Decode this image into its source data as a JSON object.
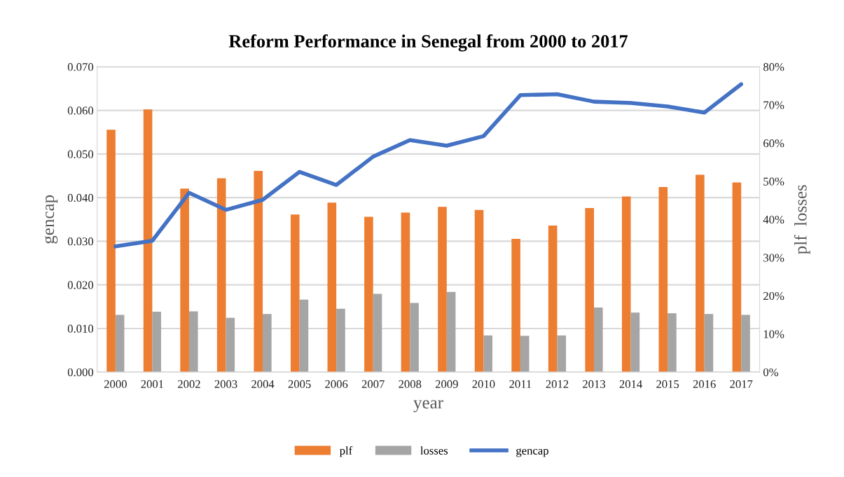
{
  "chart_data": {
    "type": "bar",
    "title": "Reform Performance in Senegal from 2000 to 2017",
    "xlabel": "year",
    "ylabel": "gencap",
    "y2label": "plf  losses",
    "categories": [
      "2000",
      "2001",
      "2002",
      "2003",
      "2004",
      "2005",
      "2006",
      "2007",
      "2008",
      "2009",
      "2010",
      "2011",
      "2012",
      "2013",
      "2014",
      "2015",
      "2016",
      "2017"
    ],
    "series": [
      {
        "name": "plf",
        "axis": "y2",
        "color": "#ed7d31",
        "values": [
          63.5,
          68.8,
          48.1,
          50.8,
          52.7,
          41.3,
          44.4,
          40.7,
          41.8,
          43.3,
          42.5,
          34.9,
          38.4,
          43.0,
          46.0,
          48.5,
          51.7,
          49.7
        ]
      },
      {
        "name": "losses",
        "axis": "y2",
        "color": "#a5a5a5",
        "values": [
          15.0,
          15.8,
          15.9,
          14.2,
          15.2,
          19.0,
          16.6,
          20.5,
          18.1,
          21.0,
          9.6,
          9.5,
          9.6,
          16.9,
          15.6,
          15.4,
          15.2,
          15.0
        ]
      },
      {
        "name": "gencap",
        "type": "line",
        "color": "#4472c4",
        "values": [
          0.0288,
          0.0301,
          0.0411,
          0.0372,
          0.0395,
          0.0459,
          0.0429,
          0.0494,
          0.0532,
          0.0519,
          0.0541,
          0.0635,
          0.0637,
          0.062,
          0.0617,
          0.0609,
          0.0595,
          0.066
        ]
      }
    ],
    "ylim": [
      0,
      0.07
    ],
    "yticks": [
      {
        "value": 0,
        "label": "0.000"
      },
      {
        "value": 0.01,
        "label": "0.010"
      },
      {
        "value": 0.02,
        "label": "0.020"
      },
      {
        "value": 0.03,
        "label": "0.030"
      },
      {
        "value": 0.04,
        "label": "0.040"
      },
      {
        "value": 0.05,
        "label": "0.050"
      },
      {
        "value": 0.06,
        "label": "0.060"
      },
      {
        "value": 0.07,
        "label": "0.070"
      }
    ],
    "y2lim": [
      0,
      80
    ],
    "y2ticks": [
      {
        "value": 0,
        "label": "0%"
      },
      {
        "value": 10,
        "label": "10%"
      },
      {
        "value": 20,
        "label": "20%"
      },
      {
        "value": 30,
        "label": "30%"
      },
      {
        "value": 40,
        "label": "40%"
      },
      {
        "value": 50,
        "label": "50%"
      },
      {
        "value": 60,
        "label": "60%"
      },
      {
        "value": 70,
        "label": "70%"
      },
      {
        "value": 80,
        "label": "80%"
      }
    ],
    "grid": "y",
    "legend": "bottom",
    "marker": "none",
    "line_style": "solid"
  }
}
